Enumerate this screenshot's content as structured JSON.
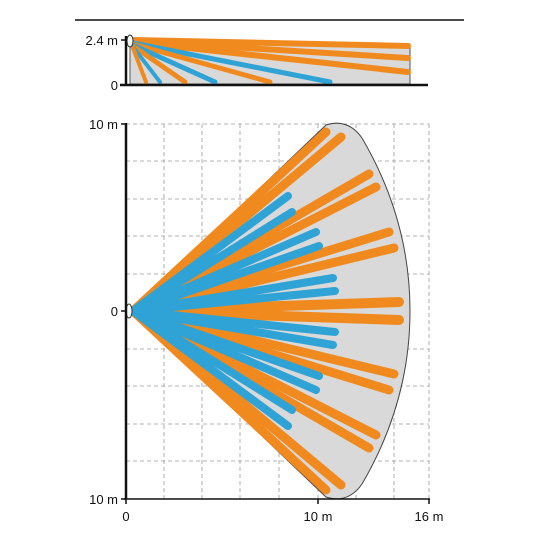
{
  "side_view": {
    "label_height": "2.4 m",
    "label_ground": "0"
  },
  "top_view": {
    "label_top": "10 m",
    "label_center": "0",
    "label_bottom": "10 m",
    "label_x_origin": "0",
    "label_x_mid": "10 m",
    "label_x_max": "16 m"
  },
  "colors": {
    "long_range_beam": "#F08A1E",
    "short_range_beam": "#2FA3D6",
    "coverage_fill": "#D9D9D9",
    "grid": "#9A9A9A",
    "axis": "#111111"
  }
}
